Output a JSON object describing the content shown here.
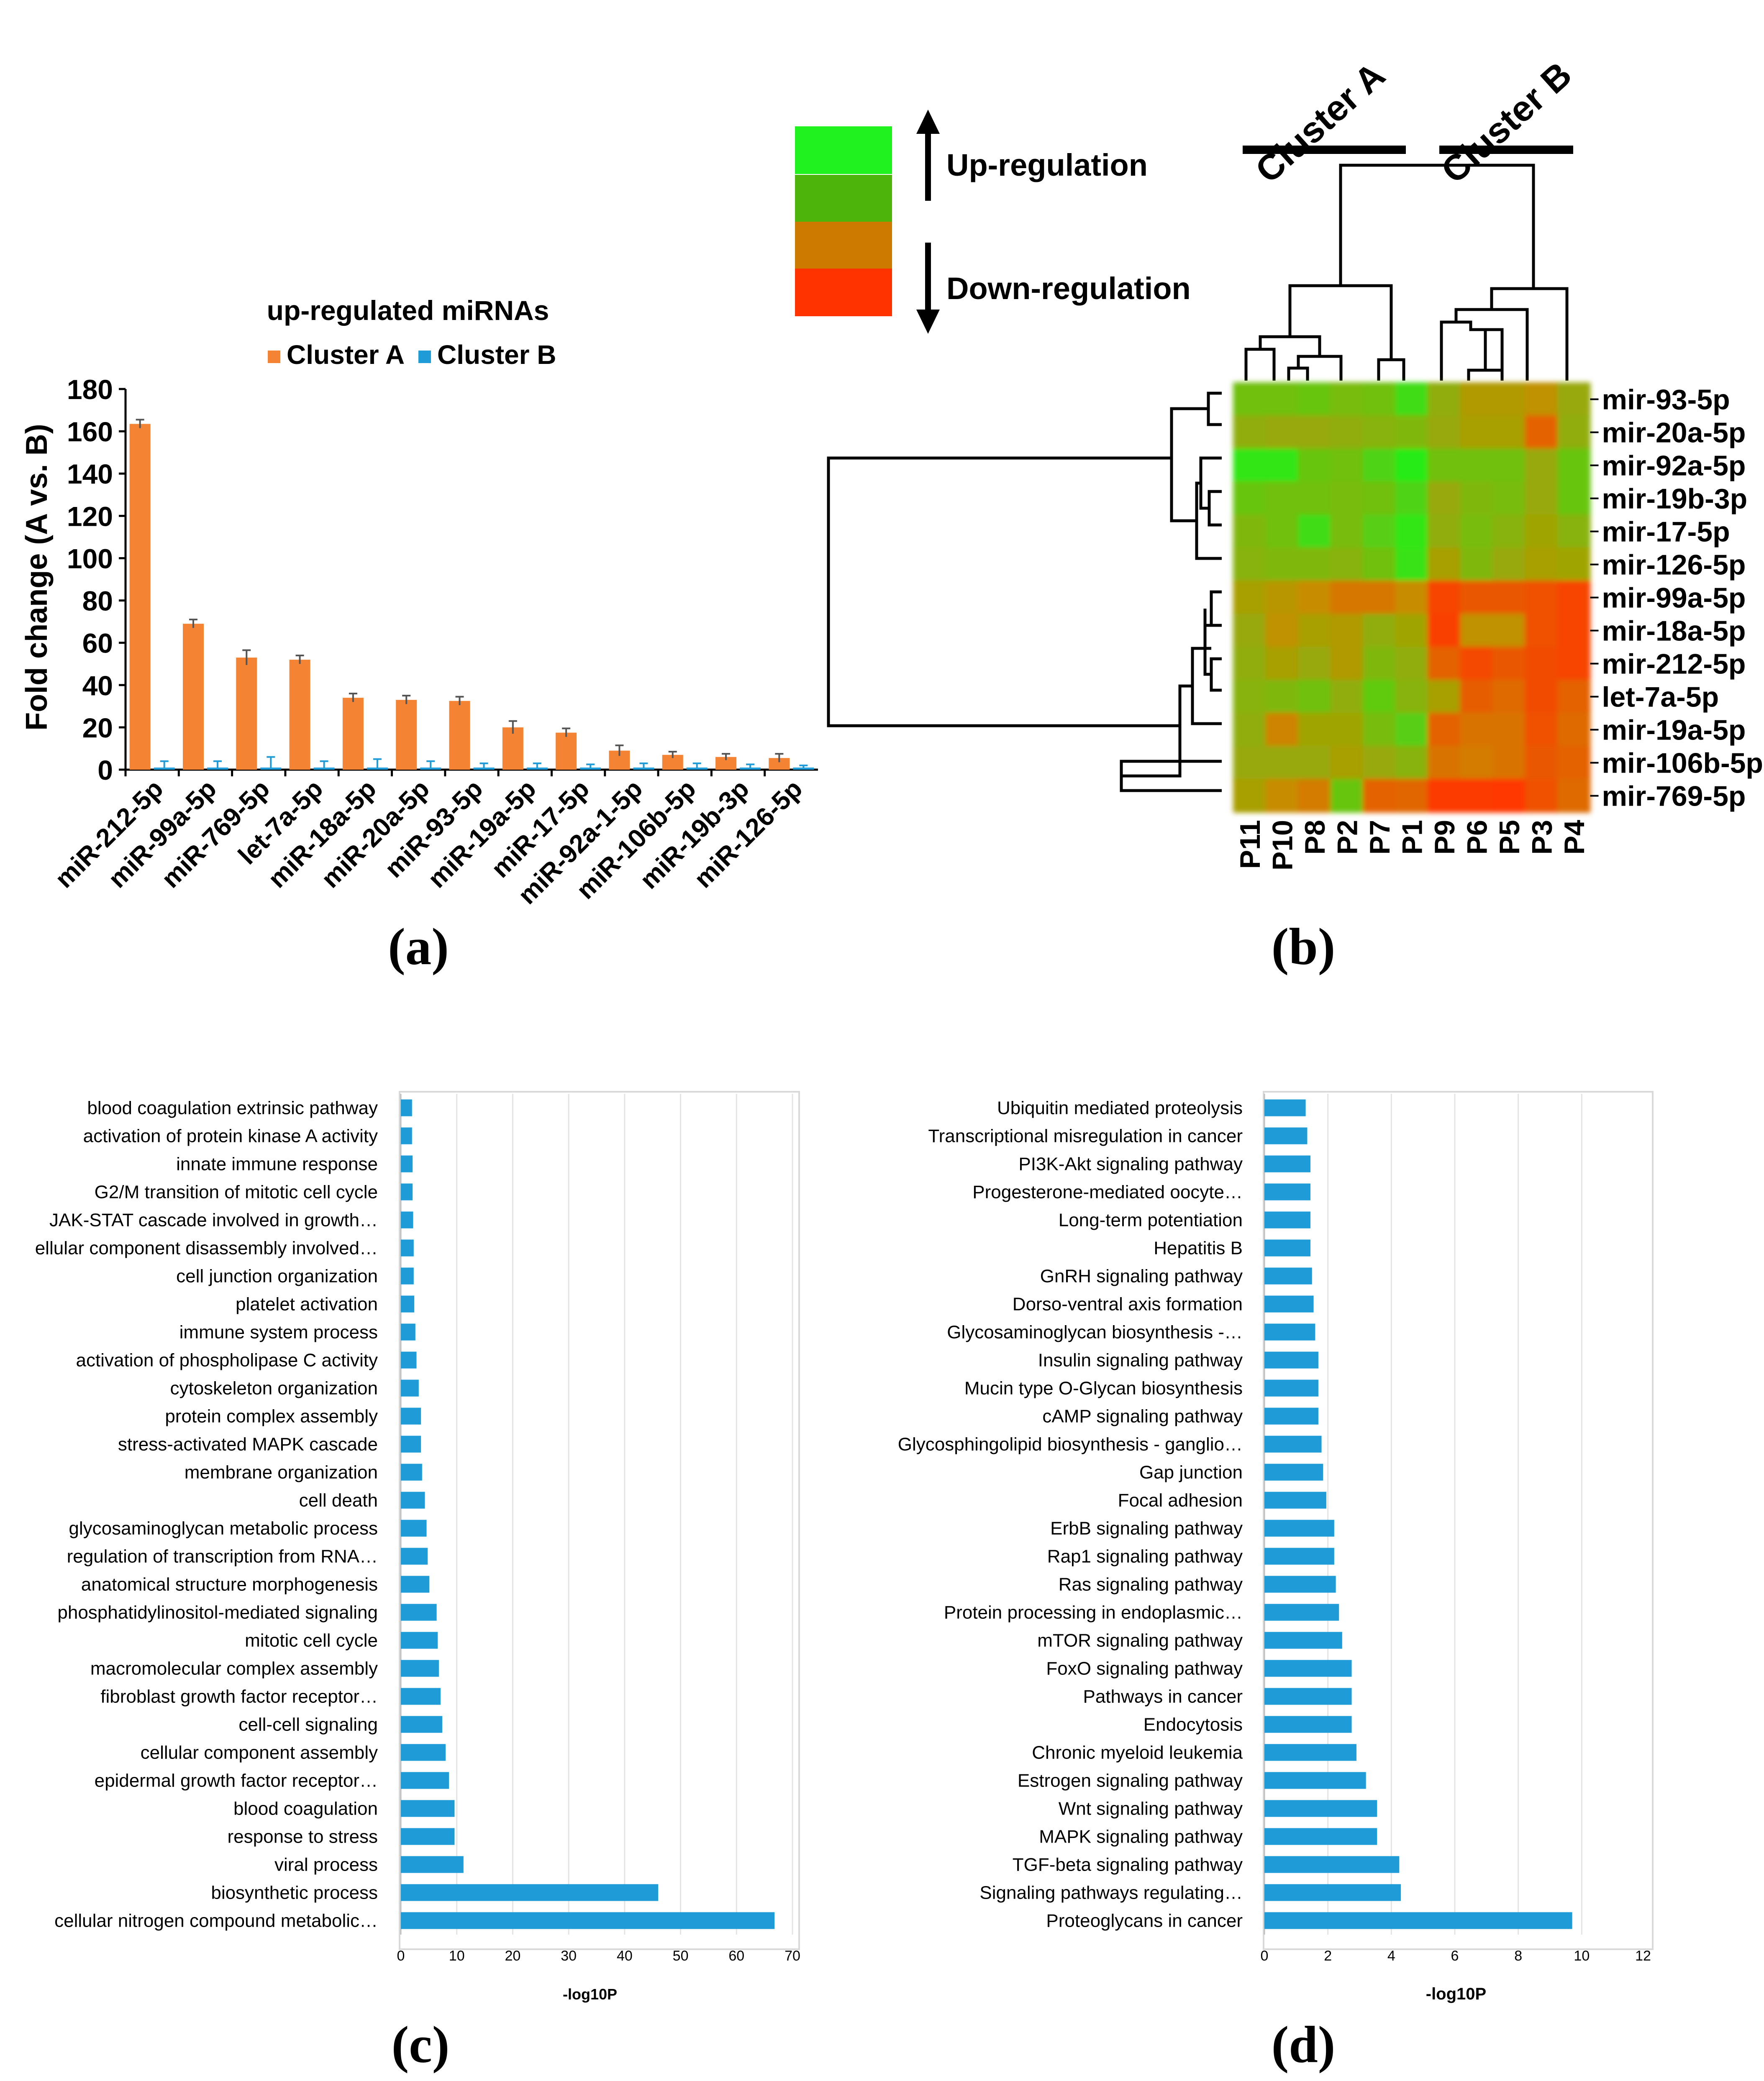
{
  "chart_data": [
    {
      "panel": "(a)",
      "type": "bar",
      "title": "up-regulated miRNAs",
      "ylabel": "Fold change (A vs. B)",
      "xlabel": "",
      "ylim": [
        0,
        180
      ],
      "yticks": [
        0,
        20,
        40,
        60,
        80,
        100,
        120,
        140,
        160,
        180
      ],
      "grid": false,
      "legend": "top",
      "categories": [
        "miR-212-5p",
        "miR-99a-5p",
        "miR-769-5p",
        "let-7a-5p",
        "miR-18a-5p",
        "miR-20a-5p",
        "miR-93-5p",
        "miR-19a-5p",
        "miR-17-5p",
        "miR-92a-1-5p",
        "miR-106b-5p",
        "miR-19b-3p",
        "miR-126-5p"
      ],
      "series": [
        {
          "name": "Cluster A",
          "color": "#f48434",
          "values": [
            163.5,
            69,
            53,
            52,
            34,
            33,
            32.5,
            20,
            17.5,
            9,
            7,
            6,
            5.5
          ],
          "errors": [
            2,
            2,
            3.5,
            2,
            2,
            2,
            2,
            3,
            2,
            2.5,
            1.5,
            1.5,
            2
          ]
        },
        {
          "name": "Cluster B",
          "color": "#1f9bd7",
          "values": [
            1,
            1,
            1,
            1,
            1,
            1,
            1,
            1,
            1,
            1,
            1,
            1,
            1
          ],
          "errors": [
            3,
            3,
            5,
            3,
            4,
            3,
            2,
            2,
            1.5,
            2,
            2,
            1.5,
            1
          ]
        }
      ]
    },
    {
      "panel": "(b)",
      "type": "heatmap",
      "legend_items": [
        {
          "label": "Up-regulation",
          "color": "#44b80c"
        },
        {
          "label": "Down-regulation",
          "color": "#ff3300"
        }
      ],
      "legend_swatches": [
        "#1ff21f",
        "#4cb40a",
        "#cc7a00",
        "#ff3300"
      ],
      "clusters": [
        "Cluster A",
        "Cluster B"
      ],
      "columns": [
        "P11",
        "P10",
        "P8",
        "P2",
        "P7",
        "P1",
        "P9",
        "P6",
        "P5",
        "P3",
        "P4"
      ],
      "rows": [
        "mir-93-5p",
        "mir-20a-5p",
        "mir-92a-5p",
        "mir-19b-3p",
        "mir-17-5p",
        "mir-126-5p",
        "mir-99a-5p",
        "mir-18a-5p",
        "mir-212-5p",
        "let-7a-5p",
        "mir-19a-5p",
        "mir-106b-5p",
        "mir-769-5p"
      ],
      "values": [
        [
          0.55,
          0.55,
          0.6,
          0.5,
          0.55,
          0.85,
          0.35,
          0.15,
          0.15,
          0.05,
          0.3
        ],
        [
          0.35,
          0.3,
          0.3,
          0.35,
          0.4,
          0.45,
          0.3,
          0.2,
          0.2,
          -0.5,
          0.35
        ],
        [
          0.95,
          0.95,
          0.6,
          0.55,
          0.75,
          1.0,
          0.55,
          0.55,
          0.55,
          0.3,
          0.6
        ],
        [
          0.6,
          0.55,
          0.55,
          0.5,
          0.55,
          0.75,
          0.3,
          0.45,
          0.5,
          0.3,
          0.6
        ],
        [
          0.45,
          0.55,
          0.85,
          0.5,
          0.7,
          0.95,
          0.35,
          0.5,
          0.4,
          0.25,
          0.4
        ],
        [
          0.4,
          0.45,
          0.45,
          0.4,
          0.55,
          0.9,
          0.2,
          0.45,
          0.3,
          0.2,
          0.25
        ],
        [
          0.2,
          0.1,
          0.0,
          -0.25,
          -0.25,
          0.0,
          -0.85,
          -0.6,
          -0.6,
          -0.7,
          -0.85
        ],
        [
          0.3,
          0.05,
          0.2,
          0.15,
          0.35,
          0.25,
          -0.9,
          0.05,
          0.05,
          -0.7,
          -0.85
        ],
        [
          0.35,
          0.2,
          0.3,
          0.15,
          0.45,
          0.35,
          -0.5,
          -0.8,
          -0.6,
          -0.75,
          -0.85
        ],
        [
          0.4,
          0.45,
          0.55,
          0.35,
          0.65,
          0.4,
          0.2,
          -0.55,
          -0.4,
          -0.75,
          -0.5
        ],
        [
          0.35,
          -0.1,
          0.25,
          0.25,
          0.5,
          0.7,
          -0.5,
          -0.3,
          -0.3,
          -0.7,
          -0.4
        ],
        [
          0.3,
          0.3,
          0.3,
          0.2,
          0.3,
          0.4,
          -0.3,
          -0.2,
          -0.3,
          -0.6,
          -0.5
        ],
        [
          0.2,
          0.0,
          -0.2,
          0.6,
          -0.5,
          -0.45,
          -0.95,
          -0.95,
          -1.0,
          -0.7,
          -0.4
        ]
      ]
    },
    {
      "panel": "(c)",
      "type": "bar",
      "orientation": "horizontal",
      "xlabel": "-log10P",
      "ylabel": "",
      "xlim": [
        0,
        70
      ],
      "xticks": [
        0,
        10,
        20,
        30,
        40,
        50,
        60,
        70
      ],
      "grid": true,
      "color": "#1f9bd7",
      "categories": [
        "blood coagulation extrinsic pathway",
        "activation of protein kinase A activity",
        "innate immune response",
        "G2/M transition of mitotic cell cycle",
        "JAK-STAT cascade involved in growth…",
        "ellular component disassembly involved…",
        "cell junction organization",
        "platelet activation",
        "immune system process",
        "activation of phospholipase C activity",
        "cytoskeleton organization",
        "protein complex assembly",
        "stress-activated MAPK cascade",
        "membrane organization",
        "cell death",
        "glycosaminoglycan metabolic process",
        "regulation of transcription from RNA…",
        "anatomical structure morphogenesis",
        "phosphatidylinositol-mediated signaling",
        "mitotic cell cycle",
        "macromolecular complex assembly",
        "fibroblast growth factor receptor…",
        "cell-cell signaling",
        "cellular component assembly",
        "epidermal growth factor receptor…",
        "blood coagulation",
        "response to stress",
        "viral process",
        "biosynthetic process",
        "cellular nitrogen compound metabolic…"
      ],
      "values": [
        2.0,
        2.0,
        2.1,
        2.1,
        2.2,
        2.3,
        2.3,
        2.4,
        2.6,
        2.8,
        3.2,
        3.6,
        3.6,
        3.8,
        4.3,
        4.6,
        4.8,
        5.1,
        6.4,
        6.6,
        6.8,
        7.1,
        7.4,
        8.0,
        8.6,
        9.6,
        9.6,
        11.2,
        46,
        66.8
      ]
    },
    {
      "panel": "(d)",
      "type": "bar",
      "orientation": "horizontal",
      "xlabel": "-log10P",
      "ylabel": "",
      "xlim": [
        0,
        12
      ],
      "xticks": [
        0,
        2,
        4,
        6,
        8,
        10
      ],
      "extra_tick": "12",
      "grid": true,
      "color": "#1f9bd7",
      "categories": [
        "Ubiquitin mediated proteolysis",
        "Transcriptional misregulation in cancer",
        "PI3K-Akt signaling pathway",
        "Progesterone-mediated oocyte…",
        "Long-term potentiation",
        "Hepatitis B",
        "GnRH signaling pathway",
        "Dorso-ventral axis formation",
        "Glycosaminoglycan biosynthesis -…",
        "Insulin signaling pathway",
        "Mucin type O-Glycan biosynthesis",
        "cAMP signaling pathway",
        "Glycosphingolipid biosynthesis - ganglio…",
        "Gap junction",
        "Focal adhesion",
        "ErbB signaling pathway",
        "Rap1 signaling pathway",
        "Ras signaling pathway",
        "Protein processing in endoplasmic…",
        "mTOR signaling pathway",
        "FoxO signaling pathway",
        "Pathways in cancer",
        "Endocytosis",
        "Chronic myeloid leukemia",
        "Estrogen signaling pathway",
        "Wnt signaling pathway",
        "MAPK signaling pathway",
        "TGF-beta signaling pathway",
        "Signaling pathways regulating…",
        "Proteoglycans in cancer"
      ],
      "values": [
        1.3,
        1.35,
        1.45,
        1.45,
        1.45,
        1.45,
        1.5,
        1.55,
        1.6,
        1.7,
        1.7,
        1.7,
        1.8,
        1.85,
        1.95,
        2.2,
        2.2,
        2.25,
        2.35,
        2.45,
        2.75,
        2.75,
        2.75,
        2.9,
        3.2,
        3.55,
        3.55,
        4.25,
        4.3,
        9.7
      ]
    }
  ],
  "panel_labels": {
    "a": "(a)",
    "b": "(b)",
    "c": "(c)",
    "d": "(d)"
  }
}
